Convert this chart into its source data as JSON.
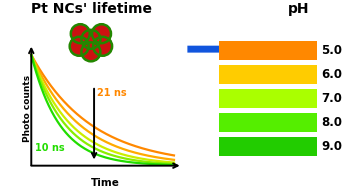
{
  "title_left": "Pt NCs' lifetime",
  "title_right": "pH",
  "arrow_color": "#1155dd",
  "xlabel": "Time",
  "ylabel": "Photo counts",
  "annotation_top": "21 ns",
  "annotation_bottom": "10 ns",
  "decay_colors": [
    "#ff8800",
    "#ffaa00",
    "#ccee00",
    "#88ee00",
    "#22dd00"
  ],
  "decay_lifetimes": [
    2.1,
    1.7,
    1.4,
    1.2,
    1.0
  ],
  "ph_labels": [
    "5.0",
    "6.0",
    "7.0",
    "8.0",
    "9.0"
  ],
  "ph_colors": [
    "#ff8800",
    "#ffcc00",
    "#aaff00",
    "#55ee00",
    "#22cc00"
  ],
  "background": "#ffffff"
}
